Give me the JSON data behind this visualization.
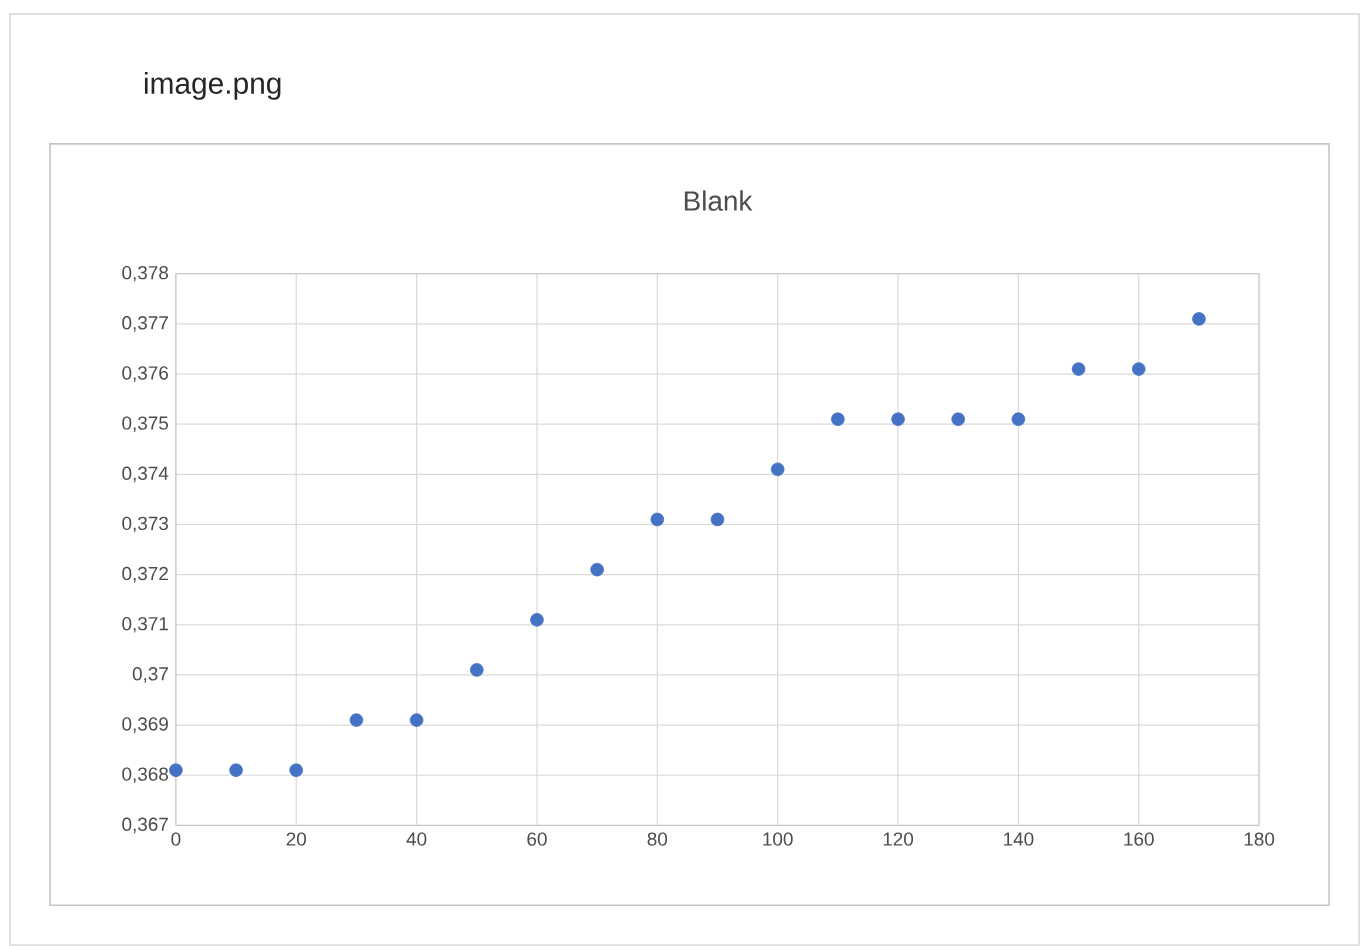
{
  "chart_data": {
    "type": "scatter",
    "title": "Blank",
    "annotations": [
      "image.png"
    ],
    "x": [
      0,
      10,
      20,
      30,
      40,
      50,
      60,
      70,
      80,
      90,
      100,
      110,
      120,
      130,
      140,
      150,
      160,
      170
    ],
    "values": [
      0.3681,
      0.3681,
      0.3681,
      0.3691,
      0.3691,
      0.3701,
      0.3711,
      0.3721,
      0.3731,
      0.3731,
      0.3741,
      0.3751,
      0.3751,
      0.3751,
      0.3751,
      0.3761,
      0.3761,
      0.3771
    ],
    "color": "#4472c4",
    "marker": "circle",
    "grid": true,
    "xlim": [
      0,
      180
    ],
    "xticks": [
      0,
      20,
      40,
      60,
      80,
      100,
      120,
      140,
      160,
      180
    ],
    "ylim": [
      0.367,
      0.378
    ],
    "yticks": [
      {
        "value": 0.367,
        "label": "0,367"
      },
      {
        "value": 0.368,
        "label": "0,368"
      },
      {
        "value": 0.369,
        "label": "0,369"
      },
      {
        "value": 0.37,
        "label": "0,37"
      },
      {
        "value": 0.371,
        "label": "0,371"
      },
      {
        "value": 0.372,
        "label": "0,372"
      },
      {
        "value": 0.373,
        "label": "0,373"
      },
      {
        "value": 0.374,
        "label": "0,374"
      },
      {
        "value": 0.375,
        "label": "0,375"
      },
      {
        "value": 0.376,
        "label": "0,376"
      },
      {
        "value": 0.377,
        "label": "0,377"
      },
      {
        "value": 0.378,
        "label": "0,378"
      }
    ]
  }
}
